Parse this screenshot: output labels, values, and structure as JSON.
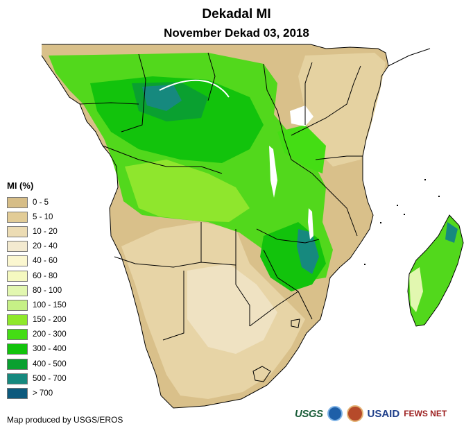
{
  "title": "Dekadal MI",
  "subtitle": "November Dekad 03, 2018",
  "legend": {
    "title": "MI (%)",
    "classes": [
      {
        "label": "0 - 5",
        "color": "#d6bd87"
      },
      {
        "label": "5 - 10",
        "color": "#e2cc97"
      },
      {
        "label": "10 - 20",
        "color": "#ecdcb4"
      },
      {
        "label": "20 - 40",
        "color": "#f3ead0"
      },
      {
        "label": "40 - 60",
        "color": "#fbf7d0"
      },
      {
        "label": "60 - 80",
        "color": "#f5f9c0"
      },
      {
        "label": "80 - 100",
        "color": "#e2f7b0"
      },
      {
        "label": "100 - 150",
        "color": "#c6f086"
      },
      {
        "label": "150 - 200",
        "color": "#8ee82a"
      },
      {
        "label": "200 - 300",
        "color": "#44dd14"
      },
      {
        "label": "300 - 400",
        "color": "#12c30c"
      },
      {
        "label": "400 - 500",
        "color": "#0aa030"
      },
      {
        "label": "500 - 700",
        "color": "#16897e"
      },
      {
        "label": "> 700",
        "color": "#0d5a7d"
      }
    ]
  },
  "credit": "Map produced by USGS/EROS",
  "logos": {
    "usgs": "USGS",
    "usaid": "USAID",
    "fews": "FEWS NET"
  }
}
